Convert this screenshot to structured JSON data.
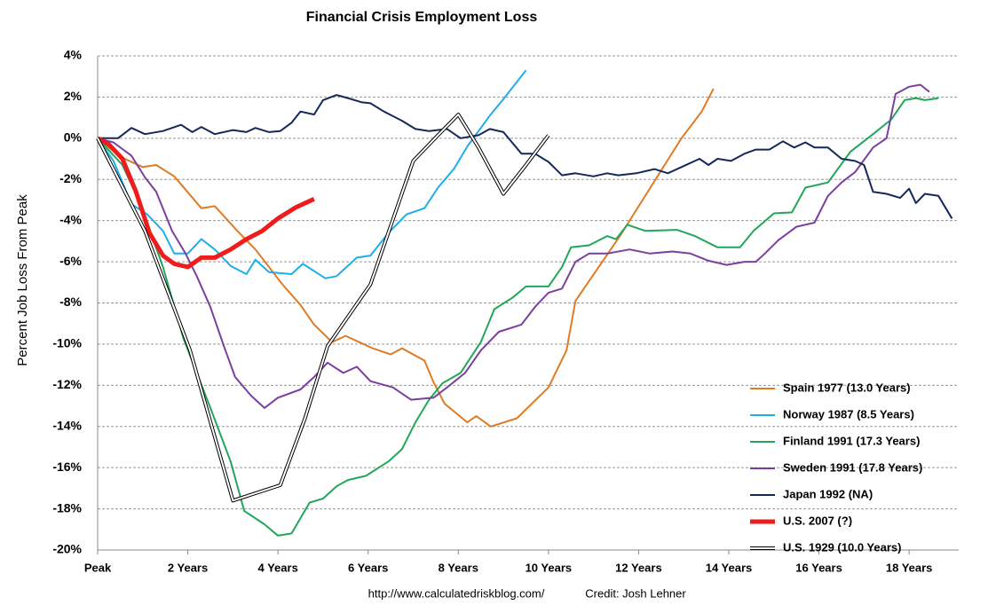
{
  "chart_data": {
    "type": "line",
    "title": "Financial Crisis Employment Loss",
    "y_label": "Percent Job Loss From Peak",
    "source": "http://www.calculatedriskblog.com/",
    "credit": "Credit: Josh Lehner",
    "xlim": [
      0,
      19.1
    ],
    "xticks": [
      {
        "value": 0,
        "label": "Peak"
      },
      {
        "value": 2,
        "label": "2 Years"
      },
      {
        "value": 4,
        "label": "4 Years"
      },
      {
        "value": 6,
        "label": "6 Years"
      },
      {
        "value": 8,
        "label": "8 Years"
      },
      {
        "value": 10,
        "label": "10 Years"
      },
      {
        "value": 12,
        "label": "12 Years"
      },
      {
        "value": 14,
        "label": "14 Years"
      },
      {
        "value": 16,
        "label": "16 Years"
      },
      {
        "value": 18,
        "label": "18 Years"
      }
    ],
    "ylim": [
      -20,
      4
    ],
    "yticks": [
      {
        "value": -20,
        "label": "-20%"
      },
      {
        "value": -18,
        "label": "-18%"
      },
      {
        "value": -16,
        "label": "-16%"
      },
      {
        "value": -14,
        "label": "-14%"
      },
      {
        "value": -12,
        "label": "-12%"
      },
      {
        "value": -10,
        "label": "-10%"
      },
      {
        "value": -8,
        "label": "-8%"
      },
      {
        "value": -6,
        "label": "-6%"
      },
      {
        "value": -4,
        "label": "-4%"
      },
      {
        "value": -2,
        "label": "-2%"
      },
      {
        "value": 0,
        "label": "0%"
      },
      {
        "value": 2,
        "label": "2%"
      },
      {
        "value": 4,
        "label": "4%"
      }
    ],
    "grid": true,
    "legend": "bottom-right",
    "series": [
      {
        "name": "Spain 1977 (13.0 Years)",
        "color": "#e07b24",
        "line_width": 2,
        "x": [
          0,
          0.5,
          1.0,
          1.3,
          1.7,
          2.3,
          2.6,
          3.1,
          3.5,
          4.1,
          4.5,
          4.8,
          5.2,
          5.5,
          6.1,
          6.5,
          6.75,
          7.25,
          7.45,
          7.7,
          8.2,
          8.4,
          8.72,
          9.3,
          10.0,
          10.4,
          10.6,
          11.6,
          12.95,
          13.4,
          13.66
        ],
        "values": [
          0,
          -0.9,
          -1.4,
          -1.3,
          -1.85,
          -3.4,
          -3.3,
          -4.5,
          -5.4,
          -7.1,
          -8.1,
          -9.05,
          -9.9,
          -9.6,
          -10.2,
          -10.5,
          -10.2,
          -10.8,
          -11.85,
          -12.9,
          -13.8,
          -13.5,
          -14,
          -13.6,
          -12.1,
          -10.3,
          -7.9,
          -4.7,
          0,
          1.3,
          2.4
        ]
      },
      {
        "name": "Norway 1987 (8.5 Years)",
        "color": "#1eaee8",
        "line_width": 2,
        "x": [
          0,
          0.35,
          0.75,
          1.1,
          1.45,
          1.7,
          2.0,
          2.3,
          2.6,
          2.95,
          3.3,
          3.5,
          3.8,
          4.3,
          4.55,
          5.05,
          5.3,
          5.75,
          6.05,
          6.45,
          6.85,
          7.25,
          7.55,
          7.9,
          8.2,
          8.7,
          9.0,
          9.5
        ],
        "values": [
          0,
          -1.1,
          -3.2,
          -3.7,
          -4.5,
          -5.6,
          -5.6,
          -4.9,
          -5.4,
          -6.2,
          -6.6,
          -5.9,
          -6.5,
          -6.6,
          -6.1,
          -6.8,
          -6.7,
          -5.8,
          -5.7,
          -4.6,
          -3.7,
          -3.4,
          -2.4,
          -1.5,
          -0.4,
          1.1,
          1.9,
          3.3
        ]
      },
      {
        "name": "Finland 1991 (17.3 Years)",
        "color": "#21a65a",
        "line_width": 2,
        "x": [
          0,
          0.55,
          0.95,
          1.45,
          1.9,
          2.5,
          2.95,
          3.25,
          3.7,
          4.0,
          4.3,
          4.7,
          5.0,
          5.3,
          5.55,
          5.95,
          6.45,
          6.75,
          7.05,
          7.35,
          7.65,
          8.05,
          8.5,
          8.8,
          9.2,
          9.5,
          10.0,
          10.3,
          10.5,
          10.9,
          11.3,
          11.5,
          11.75,
          12.15,
          12.85,
          13.25,
          13.75,
          14.25,
          14.55,
          15.0,
          15.4,
          15.7,
          16.2,
          16.7,
          17.2,
          17.6,
          17.9,
          18.15,
          18.35,
          18.65
        ],
        "values": [
          0,
          -1.3,
          -3.2,
          -6.25,
          -9.7,
          -13.1,
          -15.7,
          -18.1,
          -18.75,
          -19.3,
          -19.2,
          -17.7,
          -17.5,
          -16.9,
          -16.6,
          -16.4,
          -15.7,
          -15.1,
          -13.8,
          -12.7,
          -11.9,
          -11.4,
          -9.9,
          -8.3,
          -7.75,
          -7.2,
          -7.2,
          -6.25,
          -5.3,
          -5.2,
          -4.75,
          -4.9,
          -4.2,
          -4.5,
          -4.45,
          -4.75,
          -5.3,
          -5.3,
          -4.5,
          -3.65,
          -3.6,
          -2.4,
          -2.15,
          -0.65,
          0.2,
          0.9,
          1.85,
          1.95,
          1.85,
          1.95
        ]
      },
      {
        "name": "Sweden 1991 (17.8 Years)",
        "color": "#7a3fa0",
        "line_width": 2,
        "x": [
          0,
          0.35,
          0.75,
          1.05,
          1.3,
          1.65,
          1.95,
          2.2,
          2.5,
          2.8,
          3.05,
          3.4,
          3.7,
          4.0,
          4.5,
          4.8,
          5.1,
          5.45,
          5.75,
          6.05,
          6.55,
          6.95,
          7.45,
          7.75,
          8.15,
          8.5,
          8.9,
          9.4,
          9.7,
          10.0,
          10.3,
          10.6,
          10.9,
          11.3,
          11.8,
          12.25,
          12.75,
          13.15,
          13.55,
          13.95,
          14.35,
          14.6,
          14.8,
          15.1,
          15.5,
          15.9,
          16.2,
          16.5,
          16.8,
          17.2,
          17.5,
          17.7,
          18.0,
          18.25,
          18.45
        ],
        "values": [
          0,
          -0.2,
          -0.85,
          -1.9,
          -2.6,
          -4.5,
          -5.6,
          -6.7,
          -8.2,
          -10.1,
          -11.6,
          -12.5,
          -13.1,
          -12.6,
          -12.2,
          -11.6,
          -10.9,
          -11.4,
          -11.1,
          -11.8,
          -12.1,
          -12.7,
          -12.6,
          -12.1,
          -11.4,
          -10.3,
          -9.4,
          -9.05,
          -8.2,
          -7.5,
          -7.3,
          -6.0,
          -5.6,
          -5.6,
          -5.4,
          -5.6,
          -5.5,
          -5.6,
          -5.95,
          -6.15,
          -6.0,
          -6.0,
          -5.6,
          -4.95,
          -4.3,
          -4.1,
          -2.8,
          -2.15,
          -1.65,
          -0.45,
          0,
          2.15,
          2.5,
          2.6,
          2.25
        ]
      },
      {
        "name": "Japan 1992 (NA)",
        "color": "#14285a",
        "line_width": 2,
        "x": [
          0,
          0.45,
          0.75,
          1.05,
          1.45,
          1.85,
          2.1,
          2.3,
          2.6,
          3.0,
          3.3,
          3.5,
          3.8,
          4.05,
          4.3,
          4.5,
          4.8,
          5.0,
          5.3,
          5.55,
          5.85,
          6.05,
          6.35,
          6.75,
          7.05,
          7.35,
          7.75,
          8.05,
          8.45,
          8.7,
          9.0,
          9.4,
          9.7,
          10.0,
          10.3,
          10.6,
          11.0,
          11.3,
          11.55,
          11.95,
          12.35,
          12.65,
          12.95,
          13.35,
          13.55,
          13.75,
          14.05,
          14.35,
          14.6,
          14.9,
          15.2,
          15.45,
          15.7,
          15.9,
          16.2,
          16.5,
          16.8,
          17.0,
          17.2,
          17.5,
          17.8,
          18.0,
          18.15,
          18.35,
          18.65,
          18.95
        ],
        "values": [
          0,
          0,
          0.5,
          0.2,
          0.35,
          0.65,
          0.3,
          0.55,
          0.2,
          0.4,
          0.3,
          0.5,
          0.3,
          0.35,
          0.75,
          1.3,
          1.15,
          1.85,
          2.1,
          1.95,
          1.75,
          1.7,
          1.3,
          0.85,
          0.45,
          0.35,
          0.45,
          0,
          0.15,
          0.45,
          0.3,
          -0.75,
          -0.75,
          -1.15,
          -1.8,
          -1.7,
          -1.85,
          -1.7,
          -1.8,
          -1.7,
          -1.5,
          -1.7,
          -1.4,
          -1.0,
          -1.3,
          -1.0,
          -1.1,
          -0.75,
          -0.55,
          -0.55,
          -0.15,
          -0.45,
          -0.2,
          -0.45,
          -0.45,
          -1.0,
          -1.1,
          -1.3,
          -2.6,
          -2.7,
          -2.9,
          -2.45,
          -3.15,
          -2.7,
          -2.8,
          -3.9
        ]
      },
      {
        "name": "U.S. 2007 (?)",
        "color": "#ee1c1c",
        "line_width": 5,
        "x": [
          0,
          0.25,
          0.55,
          0.85,
          1.15,
          1.45,
          1.7,
          2.0,
          2.3,
          2.6,
          2.95,
          3.3,
          3.65,
          4.0,
          4.4,
          4.8
        ],
        "values": [
          0,
          -0.3,
          -1.0,
          -2.6,
          -4.6,
          -5.7,
          -6.1,
          -6.25,
          -5.8,
          -5.8,
          -5.4,
          -4.9,
          -4.5,
          -3.9,
          -3.35,
          -2.95
        ]
      },
      {
        "name": "U.S. 1929 (10.0 Years)",
        "color": "#000000",
        "line_width": 4,
        "style": "double",
        "x": [
          0,
          1.05,
          2.05,
          3.0,
          4.05,
          4.6,
          5.1,
          6.05,
          7.0,
          7.55,
          8.0,
          8.45,
          9.0,
          9.5,
          10.0
        ],
        "values": [
          0,
          -4.5,
          -10.3,
          -17.6,
          -16.85,
          -13.6,
          -10.1,
          -7.1,
          -1.1,
          0.15,
          1.15,
          -0.45,
          -2.7,
          -1.3,
          0.15
        ]
      }
    ]
  }
}
